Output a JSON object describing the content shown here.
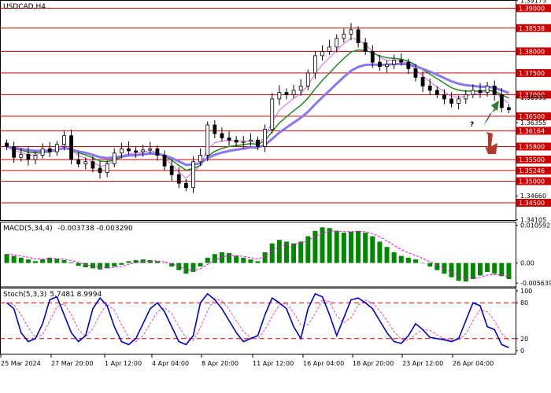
{
  "chart_data": [
    {
      "type": "candlestick",
      "title": "USDCAD,H4",
      "ylim": [
        1.341,
        1.3917
      ],
      "price_levels": [
        "1.39000",
        "1.38538",
        "1.38000",
        "1.37500",
        "1.37000",
        "1.36500",
        "1.36164",
        "1.35800",
        "1.35500",
        "1.35246",
        "1.35000",
        "1.34500"
      ],
      "price_level_values": [
        1.39,
        1.38538,
        1.38,
        1.375,
        1.37,
        1.365,
        1.36164,
        1.358,
        1.355,
        1.35246,
        1.35,
        1.345
      ],
      "axis_ticks": [
        "1.39175",
        "1.36935",
        "1.36355",
        "1.34660",
        "1.34105"
      ],
      "axis_tick_values": [
        1.39175,
        1.36935,
        1.36355,
        1.3466,
        1.34105
      ],
      "annotation": "?",
      "x_labels": [
        "25 Mar 2024",
        "27 Mar 20:00",
        "1 Apr 12:00",
        "4 Apr 04:00",
        "8 Apr 20:00",
        "11 Apr 12:00",
        "16 Apr 04:00",
        "18 Apr 20:00",
        "23 Apr 12:00",
        "26 Apr 04:00"
      ],
      "colors": {
        "level_lines": "#cc0000",
        "level_label_bg": "#cc0000",
        "ma_fast": "#e060e0",
        "ma_mid": "#228822",
        "ma_slow": "#8877ee",
        "arrow_up": "#2e7d32",
        "arrow_down": "#b03a2e"
      },
      "close_path": [
        1.358,
        1.3555,
        1.3562,
        1.355,
        1.356,
        1.3575,
        1.3568,
        1.3585,
        1.3605,
        1.355,
        1.354,
        1.3545,
        1.353,
        1.352,
        1.354,
        1.3565,
        1.3575,
        1.357,
        1.3568,
        1.3572,
        1.3575,
        1.356,
        1.3535,
        1.3515,
        1.3495,
        1.3485,
        1.3545,
        1.356,
        1.363,
        1.361,
        1.36,
        1.3595,
        1.359,
        1.3592,
        1.3595,
        1.358,
        1.362,
        1.369,
        1.3705,
        1.37,
        1.371,
        1.372,
        1.375,
        1.379,
        1.38,
        1.381,
        1.383,
        1.384,
        1.385,
        1.382,
        1.38,
        1.3775,
        1.3765,
        1.377,
        1.378,
        1.3775,
        1.376,
        1.374,
        1.372,
        1.371,
        1.37,
        1.369,
        1.368,
        1.369,
        1.37,
        1.371,
        1.3705,
        1.372,
        1.37,
        1.367,
        1.3665
      ]
    },
    {
      "type": "histogram",
      "title": "MACD(5,34,4)",
      "values_text": "-0.003738 -0.003290",
      "ylim": [
        -0.0056,
        0.0105
      ],
      "axis_ticks": [
        "0.010592",
        "0.00",
        "-0.005639"
      ],
      "axis_tick_values": [
        0.010592,
        0.0,
        -0.005639
      ],
      "colors": {
        "histogram": "#008800",
        "signal": "#ff00ff"
      },
      "histogram_values": [
        0.0025,
        0.002,
        0.0015,
        0.001,
        0.0005,
        0.001,
        0.0015,
        0.0012,
        0.0008,
        0.0002,
        -0.0008,
        -0.0012,
        -0.0015,
        -0.0018,
        -0.0015,
        -0.001,
        -0.0005,
        0.0005,
        0.0008,
        0.001,
        0.0008,
        0.0005,
        0.0,
        -0.001,
        -0.002,
        -0.003,
        -0.0025,
        -0.001,
        0.0015,
        0.0025,
        0.003,
        0.0028,
        0.002,
        0.0015,
        0.001,
        0.0005,
        0.003,
        0.0055,
        0.0065,
        0.006,
        0.0055,
        0.006,
        0.0075,
        0.009,
        0.01,
        0.0098,
        0.009,
        0.0085,
        0.0088,
        0.009,
        0.0085,
        0.0075,
        0.006,
        0.0045,
        0.003,
        0.002,
        0.0015,
        0.001,
        0.0,
        -0.001,
        -0.002,
        -0.003,
        -0.004,
        -0.005,
        -0.0052,
        -0.0045,
        -0.0035,
        -0.0025,
        -0.003,
        -0.0037,
        -0.0045
      ]
    },
    {
      "type": "line",
      "title": "Stoch(5,3,3)",
      "values_text": "5.7481 8.9994",
      "ylim": [
        0,
        100
      ],
      "axis_ticks": [
        "100",
        "80",
        "20",
        "0"
      ],
      "axis_tick_values": [
        100,
        80,
        20,
        0
      ],
      "levels": [
        80,
        20
      ],
      "colors": {
        "main": "#0000cc",
        "signal": "#ff44aa",
        "levels": "#cc0000"
      },
      "k_values": [
        80,
        70,
        30,
        15,
        20,
        45,
        85,
        90,
        60,
        30,
        15,
        25,
        70,
        88,
        75,
        40,
        15,
        10,
        20,
        45,
        70,
        80,
        65,
        40,
        15,
        10,
        25,
        80,
        95,
        85,
        70,
        50,
        30,
        15,
        20,
        25,
        60,
        88,
        80,
        70,
        40,
        20,
        70,
        95,
        90,
        60,
        25,
        55,
        85,
        88,
        80,
        70,
        50,
        30,
        15,
        12,
        25,
        45,
        35,
        22,
        20,
        18,
        15,
        20,
        50,
        80,
        75,
        40,
        35,
        10,
        5
      ]
    },
    {
      "type": "time_axis",
      "labels": [
        "25 Mar 2024",
        "27 Mar 20:00",
        "1 Apr 12:00",
        "4 Apr 04:00",
        "8 Apr 20:00",
        "11 Apr 12:00",
        "16 Apr 04:00",
        "18 Apr 20:00",
        "23 Apr 12:00",
        "26 Apr 04:00"
      ]
    }
  ]
}
